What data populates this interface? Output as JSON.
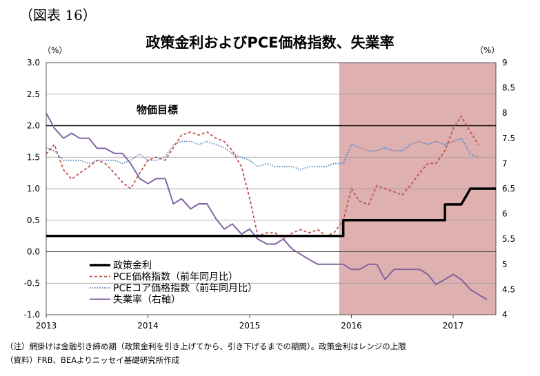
{
  "figure_label": "（図表 16）",
  "chart_data": {
    "type": "line",
    "title": "政策金利およびPCE価格指数、失業率",
    "y_left_unit": "（%）",
    "y_right_unit": "（%）",
    "y_left_range": [
      -1.0,
      3.0
    ],
    "y_right_range": [
      4,
      9
    ],
    "y_left_ticks": [
      "3.0",
      "2.5",
      "2.0",
      "1.5",
      "1.0",
      "0.5",
      "0.0",
      "-0.5",
      "-1.0"
    ],
    "y_right_ticks": [
      "9",
      "8.5",
      "8",
      "7.5",
      "7",
      "6.5",
      "6",
      "5.5",
      "5",
      "4.5",
      "4"
    ],
    "x_ticks": [
      "2013",
      "2014",
      "2015",
      "2016",
      "2017"
    ],
    "x_range": [
      2013.0,
      2017.42
    ],
    "grid": "horizontal",
    "shaded_period": {
      "start": 2015.88,
      "end": 2017.42,
      "color": "#dfb0b0"
    },
    "target_line": {
      "value": 2.0,
      "label": "物価目標"
    },
    "legend": [
      {
        "label": "政策金利"
      },
      {
        "label": "PCE価格指数（前年同月比）"
      },
      {
        "label": "PCEコア価格指数（前年同月比）"
      },
      {
        "label": "失業率（右軸）"
      }
    ],
    "series": [
      {
        "name": "政策金利",
        "axis": "left",
        "color": "#000000",
        "style": "solid-thick",
        "points": [
          [
            2013.0,
            0.25
          ],
          [
            2015.92,
            0.25
          ],
          [
            2015.92,
            0.5
          ],
          [
            2016.92,
            0.5
          ],
          [
            2016.92,
            0.75
          ],
          [
            2017.08,
            0.75
          ],
          [
            2017.17,
            1.0
          ],
          [
            2017.42,
            1.0
          ]
        ]
      },
      {
        "name": "PCE価格指数（前年同月比）",
        "axis": "left",
        "color": "#c0504d",
        "style": "dashed",
        "points": [
          [
            2013.0,
            1.55
          ],
          [
            2013.08,
            1.7
          ],
          [
            2013.17,
            1.3
          ],
          [
            2013.25,
            1.15
          ],
          [
            2013.33,
            1.25
          ],
          [
            2013.42,
            1.35
          ],
          [
            2013.5,
            1.45
          ],
          [
            2013.58,
            1.4
          ],
          [
            2013.67,
            1.25
          ],
          [
            2013.75,
            1.1
          ],
          [
            2013.83,
            1.0
          ],
          [
            2013.92,
            1.25
          ],
          [
            2014.0,
            1.45
          ],
          [
            2014.08,
            1.5
          ],
          [
            2014.17,
            1.45
          ],
          [
            2014.25,
            1.65
          ],
          [
            2014.33,
            1.85
          ],
          [
            2014.42,
            1.9
          ],
          [
            2014.5,
            1.85
          ],
          [
            2014.58,
            1.9
          ],
          [
            2014.67,
            1.8
          ],
          [
            2014.75,
            1.75
          ],
          [
            2014.83,
            1.6
          ],
          [
            2014.92,
            1.35
          ],
          [
            2015.0,
            0.85
          ],
          [
            2015.08,
            0.25
          ],
          [
            2015.17,
            0.3
          ],
          [
            2015.25,
            0.3
          ],
          [
            2015.33,
            0.2
          ],
          [
            2015.42,
            0.3
          ],
          [
            2015.5,
            0.35
          ],
          [
            2015.58,
            0.3
          ],
          [
            2015.67,
            0.35
          ],
          [
            2015.75,
            0.25
          ],
          [
            2015.83,
            0.3
          ],
          [
            2015.92,
            0.5
          ],
          [
            2016.0,
            1.0
          ],
          [
            2016.08,
            0.8
          ],
          [
            2016.17,
            0.75
          ],
          [
            2016.25,
            1.05
          ],
          [
            2016.33,
            1.0
          ],
          [
            2016.42,
            0.95
          ],
          [
            2016.5,
            0.9
          ],
          [
            2016.58,
            1.05
          ],
          [
            2016.67,
            1.25
          ],
          [
            2016.75,
            1.4
          ],
          [
            2016.83,
            1.4
          ],
          [
            2016.92,
            1.6
          ],
          [
            2017.0,
            1.95
          ],
          [
            2017.08,
            2.15
          ],
          [
            2017.17,
            1.9
          ],
          [
            2017.25,
            1.7
          ]
        ]
      },
      {
        "name": "PCEコア価格指数（前年同月比）",
        "axis": "left",
        "color": "#4f81bd",
        "style": "dotted",
        "points": [
          [
            2013.0,
            1.65
          ],
          [
            2013.08,
            1.6
          ],
          [
            2013.17,
            1.45
          ],
          [
            2013.25,
            1.45
          ],
          [
            2013.33,
            1.45
          ],
          [
            2013.42,
            1.4
          ],
          [
            2013.5,
            1.45
          ],
          [
            2013.58,
            1.45
          ],
          [
            2013.67,
            1.45
          ],
          [
            2013.75,
            1.4
          ],
          [
            2013.83,
            1.45
          ],
          [
            2013.92,
            1.55
          ],
          [
            2014.0,
            1.45
          ],
          [
            2014.08,
            1.45
          ],
          [
            2014.17,
            1.5
          ],
          [
            2014.25,
            1.7
          ],
          [
            2014.33,
            1.75
          ],
          [
            2014.42,
            1.75
          ],
          [
            2014.5,
            1.7
          ],
          [
            2014.58,
            1.75
          ],
          [
            2014.67,
            1.7
          ],
          [
            2014.75,
            1.65
          ],
          [
            2014.83,
            1.55
          ],
          [
            2014.92,
            1.5
          ],
          [
            2015.0,
            1.45
          ],
          [
            2015.08,
            1.35
          ],
          [
            2015.17,
            1.4
          ],
          [
            2015.25,
            1.35
          ],
          [
            2015.33,
            1.35
          ],
          [
            2015.42,
            1.35
          ],
          [
            2015.5,
            1.3
          ],
          [
            2015.58,
            1.35
          ],
          [
            2015.67,
            1.35
          ],
          [
            2015.75,
            1.35
          ],
          [
            2015.83,
            1.4
          ],
          [
            2015.92,
            1.4
          ],
          [
            2016.0,
            1.7
          ],
          [
            2016.08,
            1.65
          ],
          [
            2016.17,
            1.6
          ],
          [
            2016.25,
            1.6
          ],
          [
            2016.33,
            1.65
          ],
          [
            2016.42,
            1.6
          ],
          [
            2016.5,
            1.6
          ],
          [
            2016.58,
            1.7
          ],
          [
            2016.67,
            1.75
          ],
          [
            2016.75,
            1.7
          ],
          [
            2016.83,
            1.75
          ],
          [
            2016.92,
            1.7
          ],
          [
            2017.0,
            1.75
          ],
          [
            2017.08,
            1.8
          ],
          [
            2017.17,
            1.55
          ],
          [
            2017.25,
            1.5
          ]
        ]
      },
      {
        "name": "失業率（右軸）",
        "axis": "right",
        "color": "#8064a2",
        "style": "solid",
        "points": [
          [
            2013.0,
            8.0
          ],
          [
            2013.08,
            7.7
          ],
          [
            2013.17,
            7.5
          ],
          [
            2013.25,
            7.6
          ],
          [
            2013.33,
            7.5
          ],
          [
            2013.42,
            7.5
          ],
          [
            2013.5,
            7.3
          ],
          [
            2013.58,
            7.3
          ],
          [
            2013.67,
            7.2
          ],
          [
            2013.75,
            7.2
          ],
          [
            2013.83,
            7.0
          ],
          [
            2013.92,
            6.7
          ],
          [
            2014.0,
            6.6
          ],
          [
            2014.08,
            6.7
          ],
          [
            2014.17,
            6.7
          ],
          [
            2014.25,
            6.2
          ],
          [
            2014.33,
            6.3
          ],
          [
            2014.42,
            6.1
          ],
          [
            2014.5,
            6.2
          ],
          [
            2014.58,
            6.2
          ],
          [
            2014.67,
            5.9
          ],
          [
            2014.75,
            5.7
          ],
          [
            2014.83,
            5.8
          ],
          [
            2014.92,
            5.6
          ],
          [
            2015.0,
            5.7
          ],
          [
            2015.08,
            5.5
          ],
          [
            2015.17,
            5.4
          ],
          [
            2015.25,
            5.4
          ],
          [
            2015.33,
            5.5
          ],
          [
            2015.42,
            5.3
          ],
          [
            2015.5,
            5.2
          ],
          [
            2015.58,
            5.1
          ],
          [
            2015.67,
            5.0
          ],
          [
            2015.75,
            5.0
          ],
          [
            2015.83,
            5.0
          ],
          [
            2015.92,
            5.0
          ],
          [
            2016.0,
            4.9
          ],
          [
            2016.08,
            4.9
          ],
          [
            2016.17,
            5.0
          ],
          [
            2016.25,
            5.0
          ],
          [
            2016.33,
            4.7
          ],
          [
            2016.42,
            4.9
          ],
          [
            2016.5,
            4.9
          ],
          [
            2016.58,
            4.9
          ],
          [
            2016.67,
            4.9
          ],
          [
            2016.75,
            4.8
          ],
          [
            2016.83,
            4.6
          ],
          [
            2016.92,
            4.7
          ],
          [
            2017.0,
            4.8
          ],
          [
            2017.08,
            4.7
          ],
          [
            2017.17,
            4.5
          ],
          [
            2017.25,
            4.4
          ],
          [
            2017.33,
            4.3
          ]
        ]
      }
    ]
  },
  "notes": [
    "（注）網掛けは金融引き締め期（政策金利を引き上げてから、引き下げるまでの期間）。政策金利はレンジの上限",
    "（資料）FRB、BEAよりニッセイ基礎研究所作成"
  ]
}
